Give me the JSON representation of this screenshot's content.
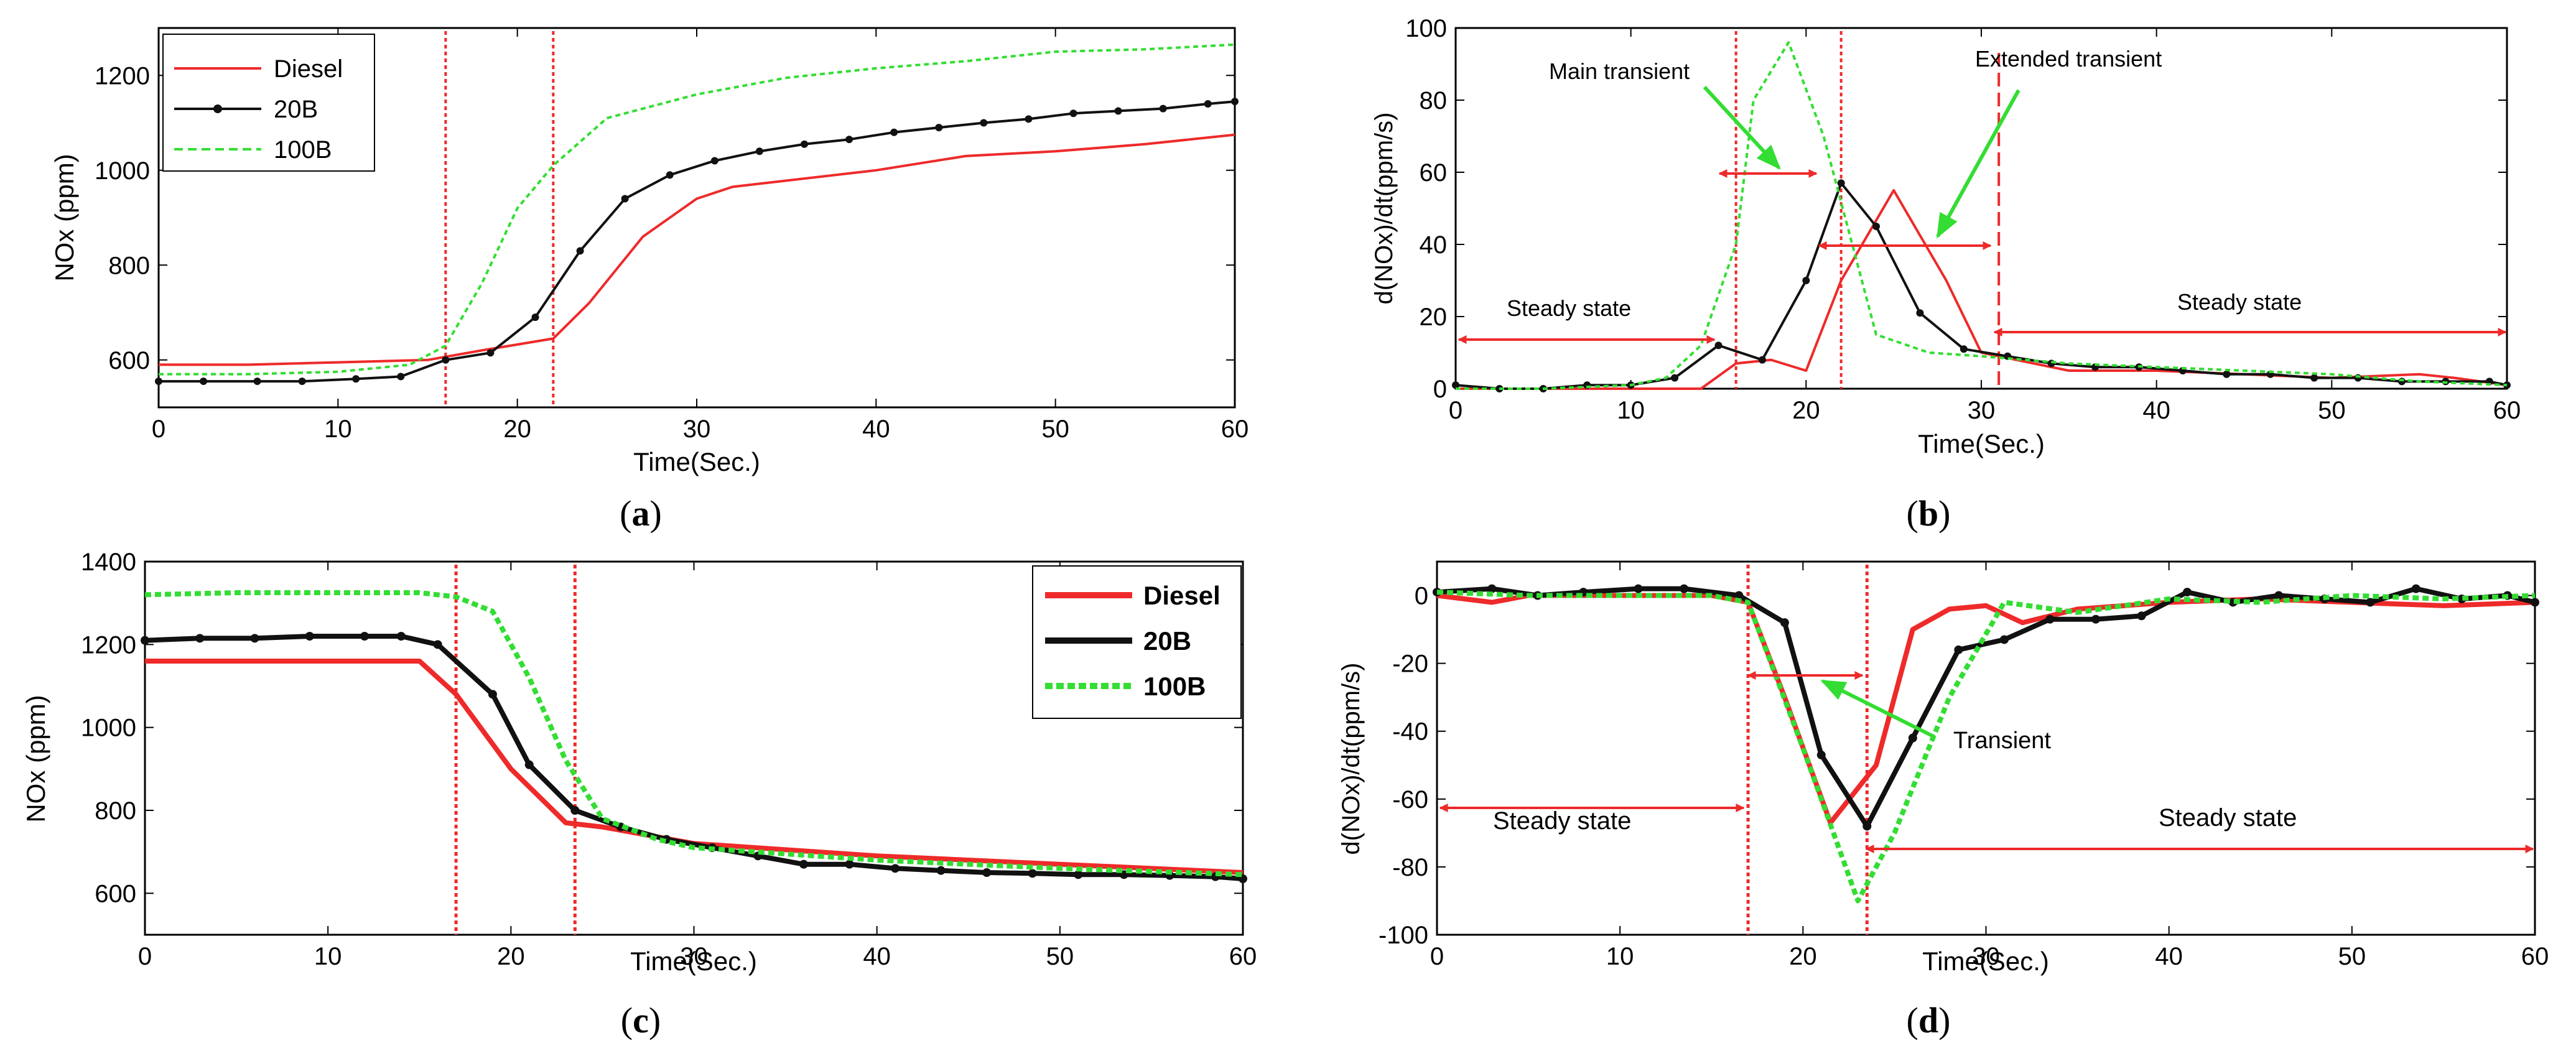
{
  "figure": {
    "panels": [
      "a",
      "b",
      "c",
      "d"
    ]
  },
  "colors": {
    "diesel": "#ee2a2a",
    "b20": "#111111",
    "b100": "#33dd33",
    "marker": "#ee2a2a",
    "arrow_red": "#ee2a2a",
    "arrow_green": "#33dd33",
    "axis": "#000000"
  },
  "chart_data": [
    {
      "id": "a",
      "type": "line",
      "caption": "(a)",
      "caption_letter": "a",
      "title": "",
      "xlabel": "Time(Sec.)",
      "ylabel": "NOx (ppm)",
      "xlim": [
        0,
        60
      ],
      "ylim": [
        500,
        1300
      ],
      "xticks": [
        0,
        10,
        20,
        30,
        40,
        50,
        60
      ],
      "yticks": [
        600,
        800,
        1000,
        1200
      ],
      "legend": {
        "position": "top-left",
        "entries": [
          "Diesel",
          "20B",
          "100B"
        ]
      },
      "vlines": [
        16,
        22
      ],
      "series": [
        {
          "name": "Diesel",
          "style": "solid",
          "color": "#ee2a2a",
          "markers": false,
          "x": [
            0,
            5,
            10,
            15,
            18,
            22,
            24,
            27,
            30,
            32,
            40,
            45,
            50,
            55,
            60
          ],
          "y": [
            590,
            590,
            595,
            600,
            620,
            645,
            720,
            860,
            940,
            965,
            1000,
            1030,
            1040,
            1055,
            1075
          ]
        },
        {
          "name": "20B",
          "style": "solid",
          "color": "#111111",
          "markers": true,
          "x": [
            0,
            2.5,
            5.5,
            8,
            11,
            13.5,
            16,
            18.5,
            21,
            23.5,
            26,
            28.5,
            31,
            33.5,
            36,
            38.5,
            41,
            43.5,
            46,
            48.5,
            51,
            53.5,
            56,
            58.5,
            60
          ],
          "y": [
            555,
            555,
            555,
            555,
            560,
            565,
            600,
            615,
            690,
            830,
            940,
            990,
            1020,
            1040,
            1055,
            1065,
            1080,
            1090,
            1100,
            1108,
            1120,
            1125,
            1130,
            1140,
            1145
          ]
        },
        {
          "name": "100B",
          "style": "dashed",
          "color": "#33dd33",
          "markers": false,
          "x": [
            0,
            5,
            10,
            14,
            16,
            18,
            20,
            22,
            25,
            30,
            35,
            40,
            45,
            50,
            55,
            60
          ],
          "y": [
            570,
            570,
            575,
            590,
            630,
            760,
            920,
            1010,
            1110,
            1160,
            1195,
            1215,
            1230,
            1250,
            1255,
            1265
          ]
        }
      ]
    },
    {
      "id": "b",
      "type": "line",
      "caption": "(b)",
      "caption_letter": "b",
      "title": "",
      "xlabel": "Time(Sec.)",
      "ylabel": "d(NOx)/dt(ppm/s)",
      "xlim": [
        0,
        60
      ],
      "ylim": [
        0,
        100
      ],
      "xticks": [
        0,
        10,
        20,
        30,
        40,
        50,
        60
      ],
      "yticks": [
        0,
        20,
        40,
        60,
        80,
        100
      ],
      "vlines": [
        16,
        22,
        31
      ],
      "annotations": [
        "Main transient",
        "Extended transient",
        "Steady state",
        "Steady state"
      ],
      "series": [
        {
          "name": "Diesel",
          "style": "solid",
          "color": "#ee2a2a",
          "markers": false,
          "x": [
            0,
            5,
            10,
            14,
            16,
            18,
            20,
            22,
            25,
            28,
            30,
            35,
            40,
            45,
            50,
            55,
            57,
            60
          ],
          "y": [
            0,
            0,
            0,
            0,
            7,
            8,
            5,
            30,
            55,
            30,
            10,
            5,
            5,
            4,
            3,
            4,
            3,
            1
          ]
        },
        {
          "name": "20B",
          "style": "solid",
          "color": "#111111",
          "markers": true,
          "x": [
            0,
            2.5,
            5,
            7.5,
            10,
            12.5,
            15,
            17.5,
            20,
            22,
            24,
            26.5,
            29,
            31.5,
            34,
            36.5,
            39,
            41.5,
            44,
            46.5,
            49,
            51.5,
            54,
            56.5,
            59,
            60
          ],
          "y": [
            1,
            0,
            0,
            1,
            1,
            3,
            12,
            8,
            30,
            57,
            45,
            21,
            11,
            9,
            7,
            6,
            6,
            5,
            4,
            4,
            3,
            3,
            2,
            2,
            2,
            1
          ]
        },
        {
          "name": "100B",
          "style": "dashed",
          "color": "#33dd33",
          "markers": false,
          "x": [
            0,
            5,
            10,
            12,
            14,
            16,
            17,
            19,
            21,
            24,
            27,
            30,
            35,
            40,
            45,
            50,
            55,
            60
          ],
          "y": [
            0,
            0,
            1,
            3,
            12,
            40,
            80,
            96,
            70,
            15,
            10,
            9,
            7,
            6,
            5,
            4,
            2,
            1
          ]
        }
      ]
    },
    {
      "id": "c",
      "type": "line",
      "caption": "(c)",
      "caption_letter": "c",
      "title": "",
      "xlabel": "Time(Sec.)",
      "ylabel": "NOx (ppm)",
      "xlim": [
        0,
        60
      ],
      "ylim": [
        500,
        1400
      ],
      "xticks": [
        0,
        10,
        20,
        30,
        40,
        50,
        60
      ],
      "yticks": [
        600,
        800,
        1000,
        1200,
        1400
      ],
      "legend": {
        "position": "top-right",
        "entries": [
          "Diesel",
          "20B",
          "100B"
        ]
      },
      "vlines": [
        17,
        23.5
      ],
      "series": [
        {
          "name": "Diesel",
          "style": "solid",
          "color": "#ee2a2a",
          "markers": false,
          "x": [
            0,
            5,
            10,
            15,
            17,
            20,
            23,
            25,
            30,
            40,
            50,
            60
          ],
          "y": [
            1160,
            1160,
            1160,
            1160,
            1080,
            900,
            770,
            760,
            720,
            690,
            670,
            650
          ]
        },
        {
          "name": "20B",
          "style": "solid",
          "color": "#111111",
          "markers": true,
          "x": [
            0,
            3,
            6,
            9,
            12,
            14,
            16,
            19,
            21,
            23.5,
            26,
            28.5,
            31,
            33.5,
            36,
            38.5,
            41,
            43.5,
            46,
            48.5,
            51,
            53.5,
            56,
            58.5,
            60
          ],
          "y": [
            1210,
            1215,
            1215,
            1220,
            1220,
            1220,
            1200,
            1080,
            910,
            800,
            760,
            730,
            710,
            690,
            670,
            670,
            660,
            655,
            650,
            648,
            645,
            645,
            643,
            640,
            635
          ]
        },
        {
          "name": "100B",
          "style": "dashed",
          "color": "#33dd33",
          "markers": false,
          "x": [
            0,
            5,
            10,
            15,
            17,
            19,
            21,
            23,
            25,
            28,
            30,
            40,
            50,
            60
          ],
          "y": [
            1320,
            1325,
            1325,
            1325,
            1315,
            1280,
            1120,
            920,
            780,
            730,
            710,
            680,
            660,
            645
          ]
        }
      ]
    },
    {
      "id": "d",
      "type": "line",
      "caption": "(d)",
      "caption_letter": "d",
      "title": "",
      "xlabel": "Time(Sec.)",
      "ylabel": "d(NOx)/dt(ppm/s)",
      "xlim": [
        0,
        60
      ],
      "ylim": [
        -100,
        10
      ],
      "xticks": [
        0,
        10,
        20,
        30,
        40,
        50,
        60
      ],
      "yticks": [
        0,
        -20,
        -40,
        -60,
        -80,
        -100
      ],
      "vlines": [
        17,
        23.5
      ],
      "annotations": [
        "Transient",
        "Steady state",
        "Steady state"
      ],
      "series": [
        {
          "name": "Diesel",
          "style": "solid",
          "color": "#ee2a2a",
          "markers": false,
          "x": [
            0,
            3,
            5,
            10,
            15,
            17,
            19,
            21.5,
            24,
            26,
            28,
            30,
            32,
            35,
            40,
            45,
            50,
            55,
            60
          ],
          "y": [
            0,
            -2,
            0,
            0,
            0,
            -2,
            -30,
            -67,
            -50,
            -10,
            -4,
            -3,
            -8,
            -4,
            -2,
            -1,
            -2,
            -3,
            -2
          ]
        },
        {
          "name": "20B",
          "style": "solid",
          "color": "#111111",
          "markers": true,
          "x": [
            0,
            3,
            5.5,
            8,
            11,
            13.5,
            16.5,
            19,
            21,
            23.5,
            26,
            28.5,
            31,
            33.5,
            36,
            38.5,
            41,
            43.5,
            46,
            48.5,
            51,
            53.5,
            56,
            58.5,
            60
          ],
          "y": [
            1,
            2,
            0,
            1,
            2,
            2,
            0,
            -8,
            -47,
            -68,
            -42,
            -16,
            -13,
            -7,
            -7,
            -6,
            1,
            -2,
            0,
            -1,
            -2,
            2,
            -1,
            0,
            -2
          ]
        },
        {
          "name": "100B",
          "style": "dashed",
          "color": "#33dd33",
          "markers": false,
          "x": [
            0,
            5,
            10,
            15,
            17,
            20,
            23,
            25,
            28,
            31,
            35,
            40,
            45,
            50,
            55,
            60
          ],
          "y": [
            1,
            0,
            0,
            0,
            -2,
            -45,
            -90,
            -70,
            -30,
            -2,
            -5,
            -1,
            -2,
            0,
            -1,
            0
          ]
        }
      ]
    }
  ]
}
